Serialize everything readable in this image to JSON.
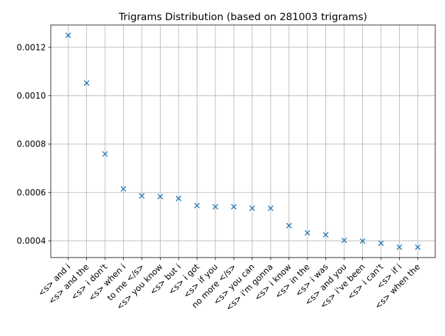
{
  "chart_data": {
    "type": "scatter",
    "title": "Trigrams Distribution (based on 281003 trigrams)",
    "xlabel": "",
    "ylabel": "",
    "grid": true,
    "marker": "x",
    "categories": [
      "<s> and i",
      "<s> and the",
      "<s> i don't",
      "<s> when i",
      "to me </s>",
      "<s> you know",
      "<s> but i",
      "<s> i got",
      "<s> if you",
      "no more </s>",
      "<s> you can",
      "<s> i'm gonna",
      "<s> i know",
      "<s> in the",
      "<s> i was",
      "<s> and you",
      "<s> i've been",
      "<s> i can't",
      "<s> if i",
      "<s> when the"
    ],
    "values": [
      0.001249,
      0.001052,
      0.000759,
      0.000615,
      0.000586,
      0.000583,
      0.000575,
      0.000546,
      0.000541,
      0.000541,
      0.000535,
      0.000535,
      0.000463,
      0.000433,
      0.000425,
      0.000402,
      0.000399,
      0.00039,
      0.000374,
      0.000374
    ],
    "yticks": [
      "0.0004",
      "0.0006",
      "0.0008",
      "0.0010",
      "0.0012"
    ],
    "ytick_values": [
      0.0004,
      0.0006,
      0.0008,
      0.001,
      0.0012
    ],
    "ylim": [
      0.000331,
      0.001292
    ],
    "colors": {
      "marker": "#1f77b4",
      "grid": "#b0b0b0",
      "axes": "#000000"
    }
  }
}
